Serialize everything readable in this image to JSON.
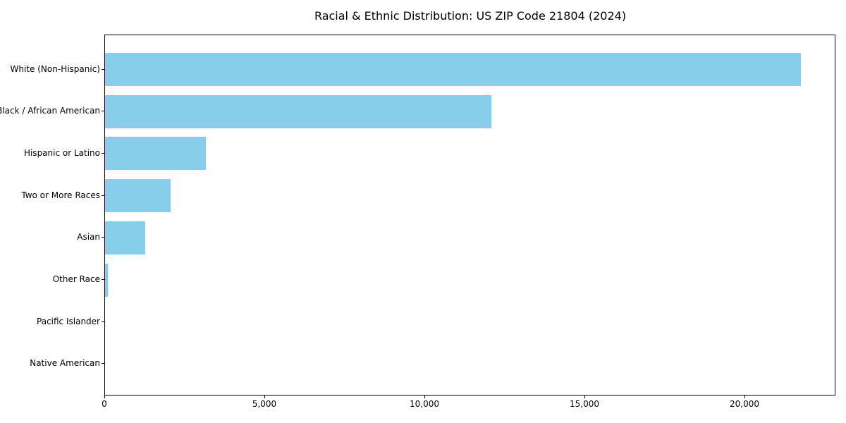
{
  "chart_data": {
    "type": "bar",
    "orientation": "horizontal",
    "title": "Racial & Ethnic Distribution: US ZIP Code 21804 (2024)",
    "categories": [
      "White (Non-Hispanic)",
      "Black / African American",
      "Hispanic or Latino",
      "Two or More Races",
      "Asian",
      "Other Race",
      "Pacific Islander",
      "Native American"
    ],
    "values": [
      21750,
      12070,
      3170,
      2050,
      1270,
      90,
      15,
      10
    ],
    "xlabel": "",
    "ylabel": "",
    "xlim": [
      0,
      22830
    ],
    "x_ticks": [
      0,
      5000,
      10000,
      15000,
      20000
    ],
    "x_tick_labels": [
      "0",
      "5,000",
      "10,000",
      "15,000",
      "20,000"
    ],
    "bar_color": "#87CEEB",
    "text_color": "#000000",
    "grid": false,
    "legend": null
  }
}
